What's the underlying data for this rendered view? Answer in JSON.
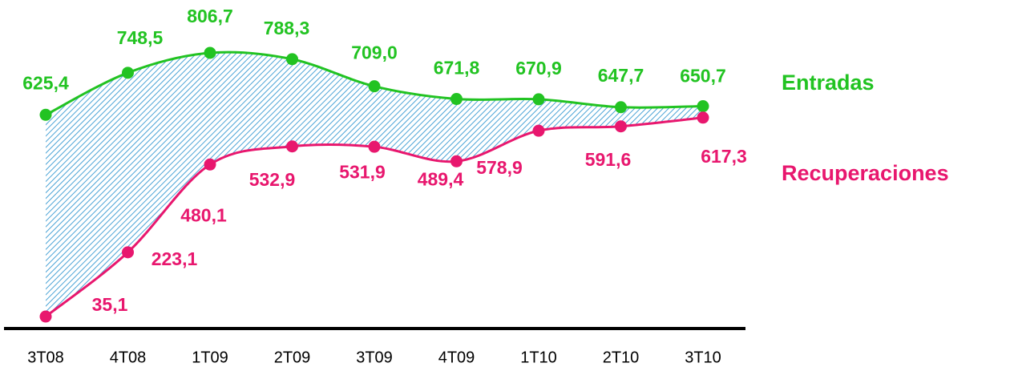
{
  "chart_data": {
    "type": "line",
    "categories": [
      "3T08",
      "4T08",
      "1T09",
      "2T09",
      "3T09",
      "4T09",
      "1T10",
      "2T10",
      "3T10"
    ],
    "series": [
      {
        "name": "Entradas",
        "color": "#22c322",
        "values": [
          625.4,
          748.5,
          806.7,
          788.3,
          709.0,
          671.8,
          670.9,
          647.7,
          650.7
        ],
        "value_labels": [
          "625,4",
          "748,5",
          "806,7",
          "788,3",
          "709,0",
          "671,8",
          "670,9",
          "647,7",
          "650,7"
        ]
      },
      {
        "name": "Recuperaciones",
        "color": "#e8176e",
        "values": [
          35.1,
          223.1,
          480.1,
          532.9,
          531.9,
          489.4,
          578.9,
          591.6,
          617.3
        ],
        "value_labels": [
          "35,1",
          "223,1",
          "480,1",
          "532,9",
          "531,9",
          "489,4",
          "578,9",
          "591,6",
          "617,3"
        ]
      }
    ]
  }
}
